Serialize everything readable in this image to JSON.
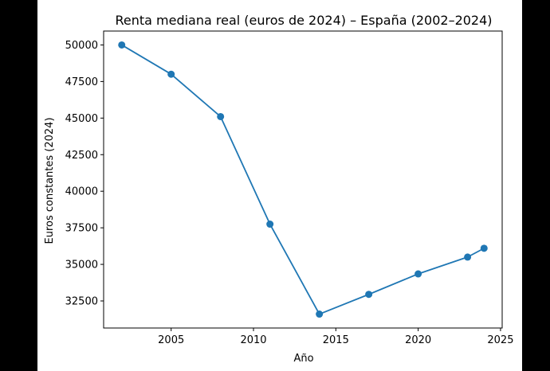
{
  "chart_data": {
    "type": "line",
    "title": "Renta mediana real (euros de 2024) – España (2002–2024)",
    "xlabel": "Año",
    "ylabel": "Euros constantes (2024)",
    "xlim": [
      2000.9,
      2025.1
    ],
    "ylim": [
      30650,
      50950
    ],
    "xticks": [
      2005,
      2010,
      2015,
      2020,
      2025
    ],
    "yticks": [
      32500,
      35000,
      37500,
      40000,
      42500,
      45000,
      47500,
      50000
    ],
    "grid": false,
    "series": [
      {
        "color": "#1f77b4",
        "marker": "circle",
        "points": [
          {
            "x": 2002,
            "y": 50000
          },
          {
            "x": 2005,
            "y": 48000
          },
          {
            "x": 2008,
            "y": 45100
          },
          {
            "x": 2011,
            "y": 37750
          },
          {
            "x": 2014,
            "y": 31600
          },
          {
            "x": 2017,
            "y": 32950
          },
          {
            "x": 2020,
            "y": 34350
          },
          {
            "x": 2023,
            "y": 35500
          },
          {
            "x": 2024,
            "y": 36100
          }
        ]
      }
    ]
  }
}
